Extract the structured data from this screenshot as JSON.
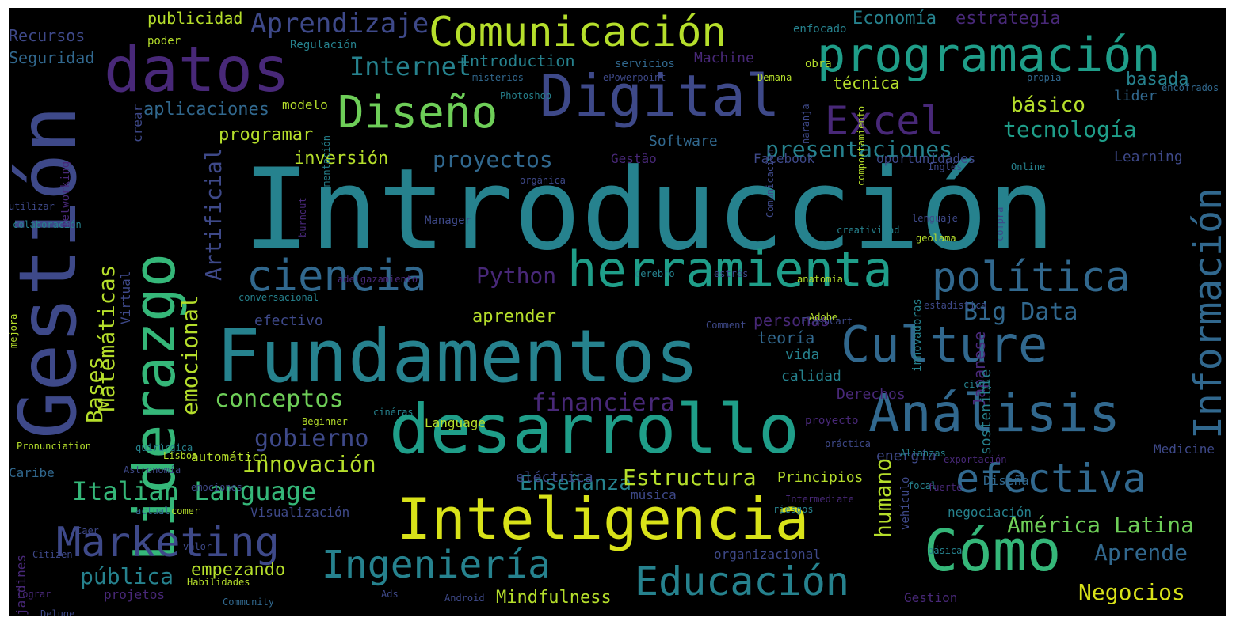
{
  "background": "#000000",
  "palette": {
    "purple": "#482878",
    "indigo": "#3e4989",
    "blue": "#31688e",
    "teal": "#26828e",
    "green": "#1f9e89",
    "lime": "#35b779",
    "yellowgreen": "#6ece58",
    "yellow": "#b5de2b",
    "bright": "#d8e219"
  },
  "words": [
    {
      "text": "Introducción",
      "color": "#26828e"
    },
    {
      "text": "Fundamentos",
      "color": "#26828e"
    },
    {
      "text": "Gestión",
      "color": "#3e4989"
    },
    {
      "text": "desarrollo",
      "color": "#1f9e89"
    },
    {
      "text": "Inteligencia",
      "color": "#d8e219"
    },
    {
      "text": "Liderazgo",
      "color": "#35b779"
    },
    {
      "text": "datos",
      "color": "#482878"
    },
    {
      "text": "Digital",
      "color": "#3e4989"
    },
    {
      "text": "programación",
      "color": "#1f9e89"
    },
    {
      "text": "Comunicación",
      "color": "#b5de2b"
    },
    {
      "text": "herramienta",
      "color": "#1f9e89"
    },
    {
      "text": "Análisis",
      "color": "#31688e"
    },
    {
      "text": "Cómo",
      "color": "#35b779"
    },
    {
      "text": "Culture",
      "color": "#31688e"
    },
    {
      "text": "política",
      "color": "#31688e"
    },
    {
      "text": "Diseño",
      "color": "#6ece58"
    },
    {
      "text": "ciencia",
      "color": "#31688e"
    },
    {
      "text": "Marketing",
      "color": "#3e4989"
    },
    {
      "text": "Educación",
      "color": "#26828e"
    },
    {
      "text": "Ingeniería",
      "color": "#26828e"
    },
    {
      "text": "efectiva",
      "color": "#31688e"
    },
    {
      "text": "Información",
      "color": "#31688e"
    },
    {
      "text": "Excel",
      "color": "#482878"
    },
    {
      "text": "Aprendizaje",
      "color": "#3e4989"
    },
    {
      "text": "Internet",
      "color": "#26828e"
    },
    {
      "text": "Italian Language",
      "color": "#35b779"
    },
    {
      "text": "Matemáticas",
      "color": "#b5de2b"
    },
    {
      "text": "Bases",
      "color": "#b5de2b"
    },
    {
      "text": "Artificial",
      "color": "#3e4989"
    },
    {
      "text": "emocional",
      "color": "#b5de2b"
    },
    {
      "text": "presentaciones",
      "color": "#26828e"
    },
    {
      "text": "tecnología",
      "color": "#1f9e89"
    },
    {
      "text": "básico",
      "color": "#b5de2b"
    },
    {
      "text": "proyectos",
      "color": "#31688e"
    },
    {
      "text": "Python",
      "color": "#482878"
    },
    {
      "text": "conceptos",
      "color": "#6ece58"
    },
    {
      "text": "financiera",
      "color": "#482878"
    },
    {
      "text": "gobierno",
      "color": "#3e4989"
    },
    {
      "text": "innovación",
      "color": "#b5de2b"
    },
    {
      "text": "Enseñanza",
      "color": "#26828e"
    },
    {
      "text": "Estructura",
      "color": "#b5de2b"
    },
    {
      "text": "humano",
      "color": "#b5de2b"
    },
    {
      "text": "América Latina",
      "color": "#6ece58"
    },
    {
      "text": "Aprende",
      "color": "#31688e"
    },
    {
      "text": "Negocios",
      "color": "#d8e219"
    },
    {
      "text": "Big Data",
      "color": "#31688e"
    },
    {
      "text": "pública",
      "color": "#26828e"
    },
    {
      "text": "empezando",
      "color": "#b5de2b"
    },
    {
      "text": "Mindfulness",
      "color": "#b5de2b"
    },
    {
      "text": "aprender",
      "color": "#b5de2b"
    },
    {
      "text": "inversión",
      "color": "#b5de2b"
    },
    {
      "text": "programar",
      "color": "#b5de2b"
    },
    {
      "text": "aplicaciones",
      "color": "#31688e"
    },
    {
      "text": "Economía",
      "color": "#26828e"
    },
    {
      "text": "estrategia",
      "color": "#482878"
    },
    {
      "text": "publicidad",
      "color": "#b5de2b"
    },
    {
      "text": "Recursos",
      "color": "#3e4989"
    },
    {
      "text": "Seguridad",
      "color": "#31688e"
    },
    {
      "text": "Introduction",
      "color": "#26828e"
    },
    {
      "text": "basada",
      "color": "#26828e"
    },
    {
      "text": "técnica",
      "color": "#b5de2b"
    },
    {
      "text": "lider",
      "color": "#31688e"
    },
    {
      "text": "Software",
      "color": "#31688e"
    },
    {
      "text": "Machine",
      "color": "#482878"
    },
    {
      "text": "Learning",
      "color": "#3e4989"
    },
    {
      "text": "Facebook",
      "color": "#3e4989"
    },
    {
      "text": "oportunidades",
      "color": "#3e4989"
    },
    {
      "text": "Gestão",
      "color": "#482878"
    },
    {
      "text": "personas",
      "color": "#482878"
    },
    {
      "text": "teoría",
      "color": "#31688e"
    },
    {
      "text": "vida",
      "color": "#26828e"
    },
    {
      "text": "calidad",
      "color": "#26828e"
    },
    {
      "text": "Derechos",
      "color": "#482878"
    },
    {
      "text": "Japanese",
      "color": "#482878"
    },
    {
      "text": "sostenible",
      "color": "#26828e"
    },
    {
      "text": "energía",
      "color": "#3e4989"
    },
    {
      "text": "Diseña",
      "color": "#31688e"
    },
    {
      "text": "Medicine",
      "color": "#3e4989"
    },
    {
      "text": "Principios",
      "color": "#b5de2b"
    },
    {
      "text": "eléctrica",
      "color": "#3e4989"
    },
    {
      "text": "música",
      "color": "#3e4989"
    },
    {
      "text": "negociación",
      "color": "#26828e"
    },
    {
      "text": "organizacional",
      "color": "#3e4989"
    },
    {
      "text": "Gestion",
      "color": "#482878"
    },
    {
      "text": "efectivo",
      "color": "#3e4989"
    },
    {
      "text": "Virtual",
      "color": "#3e4989"
    },
    {
      "text": "crear",
      "color": "#3e4989"
    },
    {
      "text": "modelo",
      "color": "#b5de2b"
    },
    {
      "text": "automático",
      "color": "#b5de2b"
    },
    {
      "text": "Caribe",
      "color": "#31688e"
    },
    {
      "text": "projetos",
      "color": "#482878"
    },
    {
      "text": "Visualización",
      "color": "#3e4989"
    },
    {
      "text": "jardines",
      "color": "#482878"
    },
    {
      "text": "Language",
      "color": "#b5de2b"
    },
    {
      "text": "poder",
      "color": "#b5de2b"
    },
    {
      "text": "Regulación",
      "color": "#26828e"
    },
    {
      "text": "enfocado",
      "color": "#26828e"
    },
    {
      "text": "servicios",
      "color": "#31688e"
    },
    {
      "text": "obra",
      "color": "#b5de2b"
    },
    {
      "text": "misterios",
      "color": "#31688e"
    },
    {
      "text": "ePowerpoint",
      "color": "#3e4989"
    },
    {
      "text": "Demana",
      "color": "#b5de2b"
    },
    {
      "text": "propia",
      "color": "#31688e"
    },
    {
      "text": "encofrados",
      "color": "#31688e"
    },
    {
      "text": "Photoshop",
      "color": "#26828e"
    },
    {
      "text": "naranja",
      "color": "#3e4989"
    },
    {
      "text": "orgánica",
      "color": "#3e4989"
    },
    {
      "text": "Inglés",
      "color": "#3e4989"
    },
    {
      "text": "Online",
      "color": "#26828e"
    },
    {
      "text": "Manager",
      "color": "#3e4989"
    },
    {
      "text": "lenguaje",
      "color": "#3e4989"
    },
    {
      "text": "geolama",
      "color": "#b5de2b"
    },
    {
      "text": "creatividad",
      "color": "#26828e"
    },
    {
      "text": "cerebro",
      "color": "#26828e"
    },
    {
      "text": "estrés",
      "color": "#3e4989"
    },
    {
      "text": "conversacional",
      "color": "#26828e"
    },
    {
      "text": "adelgazamiento",
      "color": "#482878"
    },
    {
      "text": "anatomía",
      "color": "#b5de2b"
    },
    {
      "text": "innovadoras",
      "color": "#26828e"
    },
    {
      "text": "estadística",
      "color": "#3e4989"
    },
    {
      "text": "FlashCart",
      "color": "#3e4989"
    },
    {
      "text": "Comment",
      "color": "#3e4989"
    },
    {
      "text": "Adobe",
      "color": "#b5de2b"
    },
    {
      "text": "Pronunciation",
      "color": "#b5de2b"
    },
    {
      "text": "lograr",
      "color": "#482878"
    },
    {
      "text": "Community",
      "color": "#31688e"
    },
    {
      "text": "Habilidades",
      "color": "#b5de2b"
    },
    {
      "text": "Android",
      "color": "#3e4989"
    },
    {
      "text": "Ads",
      "color": "#3e4989"
    },
    {
      "text": "valor",
      "color": "#3e4989"
    },
    {
      "text": "comer",
      "color": "#b5de2b"
    },
    {
      "text": "actual",
      "color": "#31688e"
    },
    {
      "text": "Caer",
      "color": "#3e4989"
    },
    {
      "text": "Astronomía",
      "color": "#3e4989"
    },
    {
      "text": "emociones",
      "color": "#3e4989"
    },
    {
      "text": "quirúrgica",
      "color": "#26828e"
    },
    {
      "text": "Beginner",
      "color": "#b5de2b"
    },
    {
      "text": "cinéras",
      "color": "#26828e"
    },
    {
      "text": "proyecto",
      "color": "#482878"
    },
    {
      "text": "práctica",
      "color": "#3e4989"
    },
    {
      "text": "exportación",
      "color": "#482878"
    },
    {
      "text": "Alianzas",
      "color": "#26828e"
    },
    {
      "text": "civil",
      "color": "#26828e"
    },
    {
      "text": "focal",
      "color": "#26828e"
    },
    {
      "text": "riesgos",
      "color": "#26828e"
    },
    {
      "text": "Intermediate",
      "color": "#482878"
    },
    {
      "text": "fuerte",
      "color": "#482878"
    },
    {
      "text": "vehículo",
      "color": "#3e4989"
    },
    {
      "text": "básica",
      "color": "#26828e"
    },
    {
      "text": "Lisboa",
      "color": "#b5de2b"
    },
    {
      "text": "mejora",
      "color": "#b5de2b"
    },
    {
      "text": "Citizen",
      "color": "#3e4989"
    },
    {
      "text": "Deluge",
      "color": "#3e4989"
    },
    {
      "text": "utilizar",
      "color": "#3e4989"
    },
    {
      "text": "networking",
      "color": "#482878"
    },
    {
      "text": "colaboración",
      "color": "#26828e"
    },
    {
      "text": "argumentación",
      "color": "#26828e"
    },
    {
      "text": "burnout",
      "color": "#482878"
    },
    {
      "text": "Comunicación",
      "color": "#3e4989"
    },
    {
      "text": "comportamiento",
      "color": "#b5de2b"
    },
    {
      "text": "compra",
      "color": "#3e4989"
    }
  ]
}
